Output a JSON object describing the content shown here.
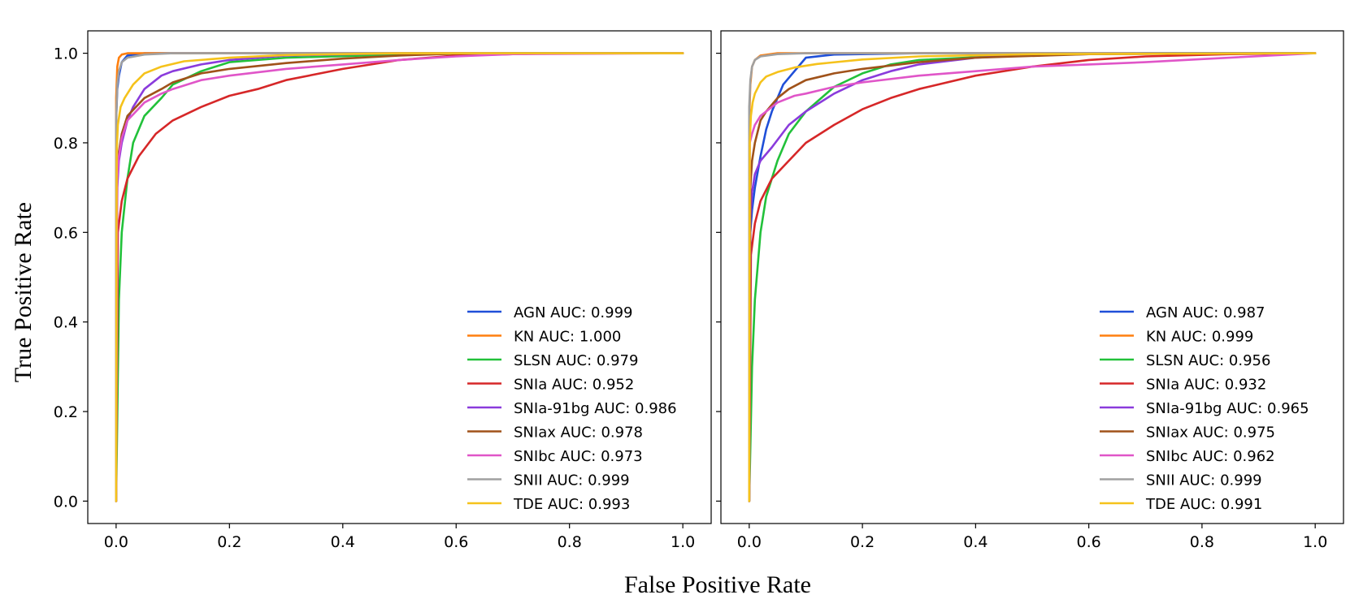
{
  "figure": {
    "ylabel": "True Positive Rate",
    "xlabel": "False Positive Rate"
  },
  "chart_data": [
    {
      "type": "line",
      "title": "",
      "xlabel": "False Positive Rate",
      "ylabel": "True Positive Rate",
      "xlim": [
        -0.05,
        1.05
      ],
      "ylim": [
        -0.05,
        1.05
      ],
      "xticks": [
        "0.0",
        "0.2",
        "0.4",
        "0.6",
        "0.8",
        "1.0"
      ],
      "yticks": [
        "0.0",
        "0.2",
        "0.4",
        "0.6",
        "0.8",
        "1.0"
      ],
      "grid": false,
      "legend_position": "lower-right",
      "series": [
        {
          "name": "AGN AUC: 0.999",
          "color": "#1f4fd8",
          "x": [
            0,
            0,
            0.002,
            0.005,
            0.01,
            0.02,
            0.05,
            1.0
          ],
          "y": [
            0,
            0.85,
            0.92,
            0.95,
            0.98,
            0.995,
            1.0,
            1.0
          ]
        },
        {
          "name": "KN AUC: 1.000",
          "color": "#ff7f0e",
          "x": [
            0,
            0,
            0.002,
            0.005,
            0.01,
            0.02,
            1.0
          ],
          "y": [
            0,
            0.9,
            0.97,
            0.99,
            0.997,
            1.0,
            1.0
          ]
        },
        {
          "name": "SLSN AUC: 0.979",
          "color": "#22c13a",
          "x": [
            0,
            0.005,
            0.01,
            0.02,
            0.03,
            0.05,
            0.08,
            0.1,
            0.15,
            0.2,
            0.3,
            0.5,
            0.7,
            1.0
          ],
          "y": [
            0,
            0.45,
            0.6,
            0.72,
            0.8,
            0.86,
            0.9,
            0.93,
            0.96,
            0.98,
            0.99,
            0.997,
            1.0,
            1.0
          ]
        },
        {
          "name": "SNIa AUC: 0.952",
          "color": "#d62728",
          "x": [
            0,
            0.003,
            0.01,
            0.02,
            0.04,
            0.07,
            0.1,
            0.15,
            0.2,
            0.25,
            0.3,
            0.4,
            0.5,
            0.6,
            0.7,
            0.8,
            1.0
          ],
          "y": [
            0,
            0.6,
            0.67,
            0.72,
            0.77,
            0.82,
            0.85,
            0.88,
            0.905,
            0.92,
            0.94,
            0.965,
            0.985,
            0.995,
            0.998,
            1.0,
            1.0
          ]
        },
        {
          "name": "SNIa-91bg AUC: 0.986",
          "color": "#8a3bdc",
          "x": [
            0,
            0.002,
            0.005,
            0.01,
            0.02,
            0.03,
            0.05,
            0.08,
            0.1,
            0.15,
            0.2,
            0.3,
            0.5,
            1.0
          ],
          "y": [
            0,
            0.7,
            0.76,
            0.8,
            0.85,
            0.88,
            0.92,
            0.95,
            0.96,
            0.975,
            0.985,
            0.995,
            1.0,
            1.0
          ]
        },
        {
          "name": "SNIax AUC: 0.978",
          "color": "#a0521a",
          "x": [
            0,
            0.002,
            0.005,
            0.01,
            0.02,
            0.05,
            0.08,
            0.1,
            0.15,
            0.2,
            0.3,
            0.4,
            0.5,
            0.6,
            1.0
          ],
          "y": [
            0,
            0.72,
            0.78,
            0.82,
            0.86,
            0.9,
            0.92,
            0.935,
            0.955,
            0.965,
            0.978,
            0.988,
            0.995,
            0.999,
            1.0
          ]
        },
        {
          "name": "SNIbc AUC: 0.973",
          "color": "#e055c8",
          "x": [
            0,
            0.002,
            0.005,
            0.01,
            0.02,
            0.05,
            0.08,
            0.1,
            0.15,
            0.2,
            0.3,
            0.4,
            0.5,
            0.6,
            0.7,
            1.0
          ],
          "y": [
            0,
            0.72,
            0.77,
            0.81,
            0.85,
            0.89,
            0.91,
            0.92,
            0.94,
            0.95,
            0.965,
            0.975,
            0.985,
            0.993,
            0.998,
            1.0
          ]
        },
        {
          "name": "SNII AUC: 0.999",
          "color": "#a0a0a0",
          "x": [
            0,
            0,
            0.002,
            0.005,
            0.01,
            0.02,
            0.05,
            0.1,
            1.0
          ],
          "y": [
            0,
            0.85,
            0.93,
            0.96,
            0.98,
            0.99,
            0.997,
            1.0,
            1.0
          ]
        },
        {
          "name": "TDE AUC: 0.993",
          "color": "#f5c21b",
          "x": [
            0,
            0.001,
            0.003,
            0.008,
            0.015,
            0.03,
            0.05,
            0.08,
            0.12,
            0.2,
            0.3,
            0.5,
            1.0
          ],
          "y": [
            0,
            0.78,
            0.84,
            0.88,
            0.9,
            0.93,
            0.955,
            0.97,
            0.982,
            0.99,
            0.996,
            1.0,
            1.0
          ]
        }
      ]
    },
    {
      "type": "line",
      "title": "",
      "xlabel": "False Positive Rate",
      "ylabel": "True Positive Rate",
      "xlim": [
        -0.05,
        1.05
      ],
      "ylim": [
        -0.05,
        1.05
      ],
      "xticks": [
        "0.0",
        "0.2",
        "0.4",
        "0.6",
        "0.8",
        "1.0"
      ],
      "yticks": [],
      "grid": false,
      "legend_position": "lower-right",
      "series": [
        {
          "name": "AGN AUC: 0.987",
          "color": "#1f4fd8",
          "x": [
            0,
            0.002,
            0.005,
            0.01,
            0.02,
            0.03,
            0.04,
            0.05,
            0.06,
            0.08,
            0.1,
            0.15,
            0.3,
            1.0
          ],
          "y": [
            0,
            0.6,
            0.65,
            0.7,
            0.77,
            0.83,
            0.87,
            0.9,
            0.93,
            0.96,
            0.99,
            0.997,
            1.0,
            1.0
          ]
        },
        {
          "name": "KN AUC: 0.999",
          "color": "#ff7f0e",
          "x": [
            0,
            0,
            0.002,
            0.005,
            0.01,
            0.02,
            0.05,
            1.0
          ],
          "y": [
            0,
            0.85,
            0.93,
            0.97,
            0.985,
            0.995,
            1.0,
            1.0
          ]
        },
        {
          "name": "SLSN AUC: 0.956",
          "color": "#22c13a",
          "x": [
            0,
            0.005,
            0.01,
            0.02,
            0.03,
            0.05,
            0.07,
            0.1,
            0.15,
            0.2,
            0.25,
            0.3,
            0.5,
            0.7,
            1.0
          ],
          "y": [
            0,
            0.3,
            0.45,
            0.6,
            0.68,
            0.76,
            0.82,
            0.87,
            0.925,
            0.955,
            0.975,
            0.985,
            0.997,
            1.0,
            1.0
          ]
        },
        {
          "name": "SNIa AUC: 0.932",
          "color": "#d62728",
          "x": [
            0,
            0.003,
            0.01,
            0.02,
            0.04,
            0.07,
            0.1,
            0.15,
            0.2,
            0.25,
            0.3,
            0.4,
            0.5,
            0.6,
            0.7,
            0.85,
            1.0
          ],
          "y": [
            0,
            0.55,
            0.62,
            0.67,
            0.72,
            0.76,
            0.8,
            0.84,
            0.875,
            0.9,
            0.92,
            0.95,
            0.97,
            0.985,
            0.993,
            0.998,
            1.0
          ]
        },
        {
          "name": "SNIa-91bg AUC: 0.965",
          "color": "#8a3bdc",
          "x": [
            0,
            0.002,
            0.005,
            0.01,
            0.02,
            0.04,
            0.07,
            0.1,
            0.15,
            0.2,
            0.25,
            0.3,
            0.4,
            0.5,
            0.7,
            1.0
          ],
          "y": [
            0,
            0.63,
            0.69,
            0.73,
            0.76,
            0.79,
            0.84,
            0.87,
            0.91,
            0.94,
            0.96,
            0.975,
            0.99,
            0.996,
            1.0,
            1.0
          ]
        },
        {
          "name": "SNIax AUC: 0.975",
          "color": "#a0521a",
          "x": [
            0,
            0.002,
            0.005,
            0.01,
            0.02,
            0.03,
            0.05,
            0.07,
            0.1,
            0.15,
            0.2,
            0.3,
            0.4,
            0.6,
            1.0
          ],
          "y": [
            0,
            0.7,
            0.76,
            0.8,
            0.85,
            0.87,
            0.9,
            0.92,
            0.94,
            0.955,
            0.965,
            0.98,
            0.99,
            0.998,
            1.0
          ]
        },
        {
          "name": "SNIbc AUC: 0.962",
          "color": "#e055c8",
          "x": [
            0,
            0.001,
            0.005,
            0.01,
            0.02,
            0.05,
            0.08,
            0.1,
            0.15,
            0.2,
            0.3,
            0.4,
            0.5,
            0.6,
            0.7,
            0.8,
            1.0
          ],
          "y": [
            0,
            0.8,
            0.82,
            0.84,
            0.86,
            0.89,
            0.905,
            0.91,
            0.925,
            0.935,
            0.95,
            0.96,
            0.97,
            0.975,
            0.98,
            0.987,
            1.0
          ]
        },
        {
          "name": "SNII AUC: 0.999",
          "color": "#a0a0a0",
          "x": [
            0,
            0,
            0.002,
            0.005,
            0.01,
            0.02,
            0.05,
            0.1,
            1.0
          ],
          "y": [
            0,
            0.88,
            0.94,
            0.97,
            0.985,
            0.993,
            0.998,
            1.0,
            1.0
          ]
        },
        {
          "name": "TDE AUC: 0.991",
          "color": "#f5c21b",
          "x": [
            0,
            0.001,
            0.003,
            0.006,
            0.01,
            0.02,
            0.03,
            0.05,
            0.08,
            0.12,
            0.2,
            0.3,
            0.5,
            1.0
          ],
          "y": [
            0,
            0.8,
            0.86,
            0.89,
            0.91,
            0.935,
            0.948,
            0.958,
            0.968,
            0.976,
            0.986,
            0.993,
            0.998,
            1.0
          ]
        }
      ]
    }
  ]
}
